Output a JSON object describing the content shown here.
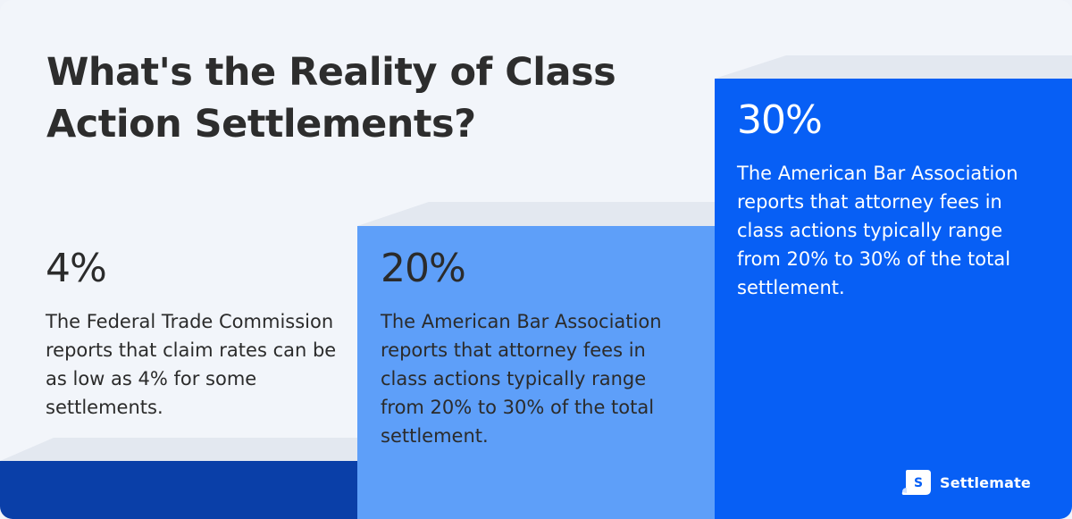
{
  "title": "What's the Reality of Class Action Settlements?",
  "colors": {
    "background": "#f2f5fa",
    "step1": "#0a3fa8",
    "step2": "#5e9ff9",
    "step3": "#075ff5",
    "text_dark": "#2b2b2b",
    "text_light": "#ffffff"
  },
  "stats": [
    {
      "value": "4%",
      "text": "The Federal Trade Commission reports that claim rates can be as low as 4% for some settlements."
    },
    {
      "value": "20%",
      "text": "The American Bar Association reports that attorney fees in class actions typically range from 20% to 30% of the total settlement."
    },
    {
      "value": "30%",
      "text": "The American Bar Association reports that attorney fees in class actions typically range from 20% to 30% of the total settlement."
    }
  ],
  "brand": {
    "name": "Settlemate",
    "icon": "settlemate-logo-icon"
  }
}
